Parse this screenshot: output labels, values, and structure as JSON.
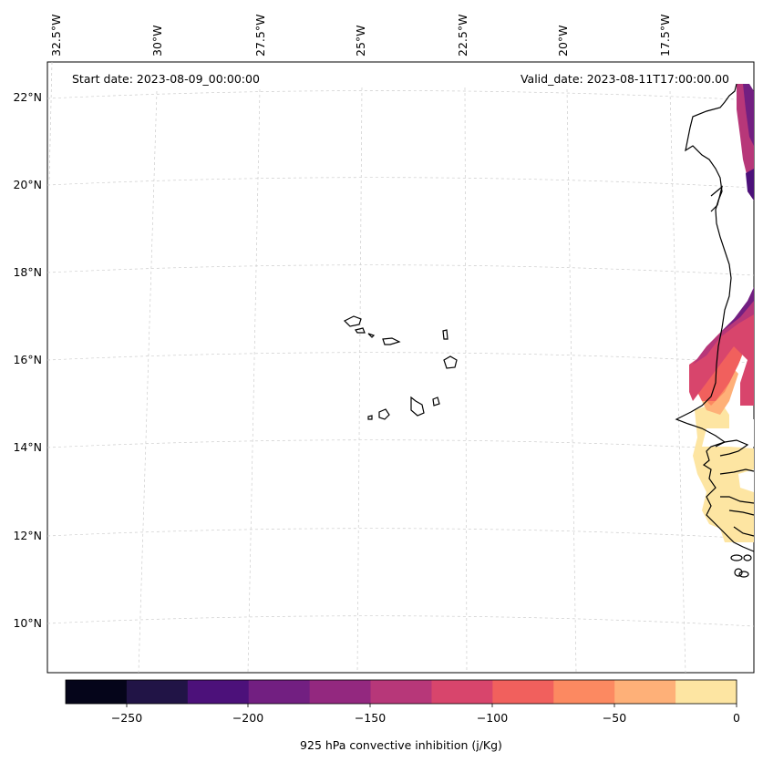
{
  "annotations": {
    "start_date": "Start date: 2023-08-09_00:00:00",
    "valid_date": "Valid_date: 2023-08-11T17:00:00.00"
  },
  "lon_ticks": [
    "32.5°W",
    "30°W",
    "27.5°W",
    "25°W",
    "22.5°W",
    "20°W",
    "17.5°W"
  ],
  "lat_ticks": [
    "22°N",
    "20°N",
    "18°N",
    "16°N",
    "14°N",
    "12°N",
    "10°N"
  ],
  "colorbar": {
    "title": "925 hPa convective inhibition (j/Kg)",
    "tick_labels": [
      "−250",
      "−200",
      "−150",
      "−100",
      "−50",
      "0"
    ],
    "levels": [
      -275,
      -250,
      -225,
      -200,
      -175,
      -150,
      -125,
      -100,
      -75,
      -50,
      -25,
      0
    ],
    "colors": [
      "#05051a",
      "#211446",
      "#4c117a",
      "#721f81",
      "#93287f",
      "#b73779",
      "#d8456c",
      "#f1605d",
      "#fc8961",
      "#feb078",
      "#fde5a2"
    ]
  }
}
